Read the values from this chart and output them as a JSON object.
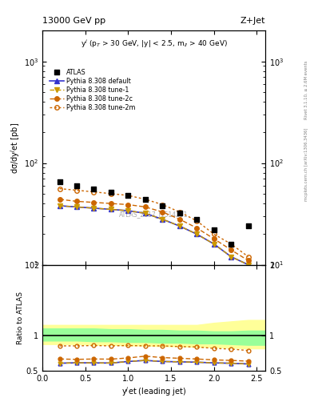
{
  "title_left": "13000 GeV pp",
  "title_right": "Z+Jet",
  "annotation": "y$^{j}$ (p$_{T}$ > 30 GeV, |y| < 2.5, m$_{ll}$ > 40 GeV)",
  "watermark": "ATLAS_2017_I1514251",
  "ylabel_main": "dσ/dy$^{j}$et [pb]",
  "ylabel_ratio": "Ratio to ATLAS",
  "xlabel": "y$^{j}$et (leading jet)",
  "right_label_top": "Rivet 3.1.10, ≥ 2.6M events",
  "right_label_bottom": "mcplots.cern.ch [arXiv:1306.3436]",
  "x_data": [
    0.2,
    0.4,
    0.6,
    0.8,
    1.0,
    1.2,
    1.4,
    1.6,
    1.8,
    2.0,
    2.2,
    2.4
  ],
  "atlas_y": [
    65,
    60,
    56,
    52,
    48,
    44,
    38,
    32,
    28,
    22,
    16,
    24
  ],
  "pythia_default_y": [
    38,
    37,
    36,
    35,
    34,
    32,
    28,
    24,
    20,
    16,
    12,
    10
  ],
  "pythia_tune1_y": [
    38,
    37,
    36,
    35,
    34,
    32,
    28,
    24,
    20,
    16,
    12,
    10
  ],
  "pythia_tune2c_y": [
    44,
    42,
    41,
    40,
    39,
    37,
    33,
    28,
    23,
    18,
    14,
    11
  ],
  "pythia_tune2m_y": [
    56,
    54,
    52,
    50,
    48,
    44,
    39,
    33,
    27,
    20,
    16,
    12
  ],
  "ratio_default": [
    0.61,
    0.617,
    0.615,
    0.613,
    0.635,
    0.65,
    0.635,
    0.63,
    0.625,
    0.615,
    0.61,
    0.6
  ],
  "ratio_tune1": [
    0.61,
    0.617,
    0.615,
    0.613,
    0.635,
    0.65,
    0.635,
    0.63,
    0.625,
    0.615,
    0.61,
    0.6
  ],
  "ratio_tune2c": [
    0.67,
    0.665,
    0.67,
    0.668,
    0.685,
    0.71,
    0.69,
    0.68,
    0.67,
    0.658,
    0.65,
    0.64
  ],
  "ratio_tune2m": [
    0.855,
    0.855,
    0.86,
    0.855,
    0.86,
    0.855,
    0.855,
    0.845,
    0.84,
    0.82,
    0.81,
    0.79
  ],
  "band_yellow_upper": [
    1.15,
    1.15,
    1.15,
    1.15,
    1.15,
    1.15,
    1.15,
    1.15,
    1.15,
    1.18,
    1.2,
    1.22
  ],
  "band_yellow_lower": [
    0.88,
    0.88,
    0.87,
    0.87,
    0.86,
    0.86,
    0.85,
    0.85,
    0.84,
    0.84,
    0.83,
    0.82
  ],
  "band_green_upper": [
    1.1,
    1.1,
    1.1,
    1.09,
    1.09,
    1.08,
    1.08,
    1.07,
    1.07,
    1.06,
    1.06,
    1.07
  ],
  "band_green_lower": [
    0.93,
    0.93,
    0.92,
    0.92,
    0.91,
    0.91,
    0.9,
    0.9,
    0.89,
    0.89,
    0.88,
    0.87
  ],
  "color_atlas": "#000000",
  "color_default": "#3333cc",
  "color_tune1": "#cc9900",
  "color_tune2c": "#cc6600",
  "color_tune2m": "#cc6600",
  "color_yellow": "#ffff99",
  "color_green": "#99ff99",
  "xlim": [
    0.0,
    2.6
  ],
  "ylim_main": [
    10,
    2000
  ],
  "ylim_ratio": [
    0.5,
    2.0
  ]
}
